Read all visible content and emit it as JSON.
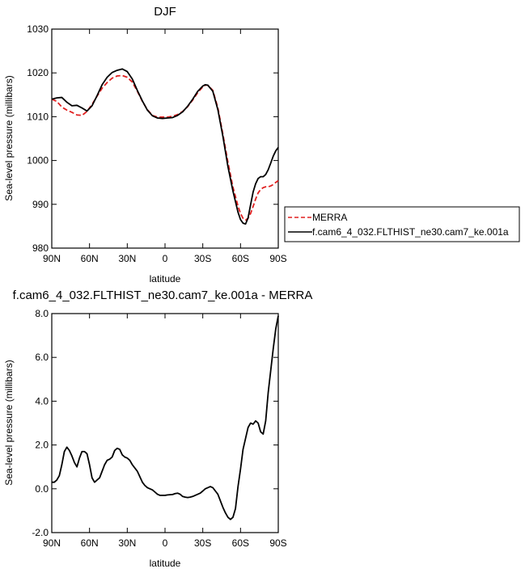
{
  "chart_data": [
    {
      "type": "line",
      "title": "DJF",
      "xlabel": "latitude",
      "ylabel": "Sea-level pressure (millibars)",
      "xlim": [
        90,
        -90
      ],
      "ylim": [
        980,
        1030
      ],
      "xticks": [
        {
          "value": 90,
          "label": "90N"
        },
        {
          "value": 60,
          "label": "60N"
        },
        {
          "value": 30,
          "label": "30N"
        },
        {
          "value": 0,
          "label": "0"
        },
        {
          "value": -30,
          "label": "30S"
        },
        {
          "value": -60,
          "label": "60S"
        },
        {
          "value": -90,
          "label": "90S"
        }
      ],
      "yticks": [
        {
          "value": 1030,
          "label": "1030"
        },
        {
          "value": 1020,
          "label": "1020"
        },
        {
          "value": 1010,
          "label": "1010"
        },
        {
          "value": 1000,
          "label": "1000"
        },
        {
          "value": 990,
          "label": "990"
        },
        {
          "value": 980,
          "label": "980"
        }
      ],
      "legend_position": "outside-right",
      "series": [
        {
          "name": "MERRA",
          "color": "#e02020",
          "dash": "dashed",
          "x": [
            90,
            86,
            82,
            78,
            74,
            70,
            66,
            62,
            58,
            54,
            50,
            46,
            42,
            38,
            34,
            30,
            26,
            22,
            18,
            14,
            10,
            6,
            2,
            -2,
            -6,
            -10,
            -14,
            -18,
            -22,
            -26,
            -30,
            -32,
            -34,
            -38,
            -42,
            -46,
            -50,
            -54,
            -58,
            -60,
            -62,
            -64,
            -66,
            -68,
            -70,
            -72,
            -74,
            -76,
            -78,
            -80,
            -82,
            -84,
            -86,
            -88,
            -90
          ],
          "y": [
            1014.0,
            1013.5,
            1012.2,
            1011.5,
            1011.0,
            1010.4,
            1010.3,
            1011.2,
            1012.8,
            1014.7,
            1016.5,
            1017.8,
            1018.8,
            1019.3,
            1019.4,
            1019.0,
            1017.9,
            1015.8,
            1013.5,
            1011.6,
            1010.3,
            1009.9,
            1009.9,
            1009.9,
            1010.1,
            1010.5,
            1011.2,
            1012.3,
            1013.8,
            1015.5,
            1016.8,
            1017.2,
            1017.2,
            1016.0,
            1012.0,
            1006.0,
            999.6,
            993.9,
            989.6,
            987.9,
            986.8,
            986.4,
            986.8,
            987.9,
            989.5,
            991.2,
            992.6,
            993.4,
            993.8,
            994.0,
            994.0,
            994.2,
            994.5,
            995.0,
            995.4
          ]
        },
        {
          "name": "f.cam6_4_032.FLTHIST_ne30.cam7_ke.001a",
          "color": "#000000",
          "dash": "solid",
          "x": [
            90,
            86,
            82,
            78,
            74,
            70,
            66,
            62,
            58,
            54,
            50,
            46,
            42,
            38,
            34,
            30,
            26,
            22,
            18,
            14,
            10,
            6,
            2,
            -2,
            -6,
            -10,
            -14,
            -18,
            -22,
            -26,
            -30,
            -32,
            -34,
            -38,
            -42,
            -46,
            -50,
            -54,
            -58,
            -60,
            -62,
            -64,
            -66,
            -68,
            -70,
            -72,
            -74,
            -76,
            -78,
            -80,
            -82,
            -84,
            -86,
            -88,
            -90
          ],
          "y": [
            1014.0,
            1014.3,
            1014.4,
            1013.3,
            1012.5,
            1012.6,
            1012.0,
            1011.3,
            1012.5,
            1014.8,
            1017.3,
            1019.0,
            1020.1,
            1020.6,
            1020.9,
            1020.3,
            1018.6,
            1016.0,
            1013.6,
            1011.5,
            1010.2,
            1009.7,
            1009.6,
            1009.7,
            1009.8,
            1010.3,
            1011.1,
            1012.4,
            1014.0,
            1015.8,
            1017.0,
            1017.3,
            1017.2,
            1015.8,
            1011.6,
            1005.5,
            998.6,
            993.0,
            988.2,
            986.5,
            985.7,
            985.5,
            986.9,
            989.9,
            992.8,
            994.7,
            995.9,
            996.3,
            996.3,
            996.8,
            997.9,
            999.4,
            1001.0,
            1002.2,
            1003.0
          ]
        }
      ]
    },
    {
      "type": "line",
      "title": "f.cam6_4_032.FLTHIST_ne30.cam7_ke.001a - MERRA",
      "xlabel": "latitude",
      "ylabel": "Sea-level pressure (millibars)",
      "xlim": [
        90,
        -90
      ],
      "ylim": [
        -2.0,
        8.0
      ],
      "xticks": [
        {
          "value": 90,
          "label": "90N"
        },
        {
          "value": 60,
          "label": "60N"
        },
        {
          "value": 30,
          "label": "30N"
        },
        {
          "value": 0,
          "label": "0"
        },
        {
          "value": -30,
          "label": "30S"
        },
        {
          "value": -60,
          "label": "60S"
        },
        {
          "value": -90,
          "label": "90S"
        }
      ],
      "yticks": [
        {
          "value": 8.0,
          "label": "8.0"
        },
        {
          "value": 6.0,
          "label": "6.0"
        },
        {
          "value": 4.0,
          "label": "4.0"
        },
        {
          "value": 2.0,
          "label": "2.0"
        },
        {
          "value": 0.0,
          "label": "0.0"
        },
        {
          "value": -2.0,
          "label": "-2.0"
        }
      ],
      "series": [
        {
          "color": "#000000",
          "dash": "solid",
          "x": [
            90,
            88,
            86,
            84,
            82,
            80,
            78,
            76,
            74,
            72,
            70,
            68,
            66,
            64,
            62,
            60,
            58,
            56,
            54,
            52,
            50,
            48,
            46,
            44,
            42,
            40,
            38,
            36,
            34,
            32,
            30,
            28,
            26,
            24,
            22,
            20,
            18,
            16,
            14,
            12,
            10,
            8,
            6,
            4,
            2,
            0,
            -2,
            -4,
            -6,
            -8,
            -10,
            -12,
            -14,
            -16,
            -18,
            -20,
            -22,
            -24,
            -26,
            -28,
            -30,
            -32,
            -34,
            -36,
            -38,
            -40,
            -42,
            -44,
            -46,
            -48,
            -50,
            -52,
            -54,
            -56,
            -58,
            -60,
            -62,
            -64,
            -66,
            -68,
            -70,
            -72,
            -74,
            -76,
            -78,
            -80,
            -82,
            -84,
            -86,
            -88,
            -90
          ],
          "y": [
            0.3,
            0.3,
            0.4,
            0.6,
            1.1,
            1.7,
            1.9,
            1.75,
            1.5,
            1.2,
            1.0,
            1.4,
            1.7,
            1.7,
            1.6,
            1.1,
            0.5,
            0.3,
            0.4,
            0.5,
            0.8,
            1.1,
            1.3,
            1.35,
            1.45,
            1.75,
            1.85,
            1.8,
            1.55,
            1.45,
            1.4,
            1.3,
            1.1,
            0.95,
            0.8,
            0.55,
            0.3,
            0.15,
            0.05,
            0.0,
            -0.05,
            -0.15,
            -0.25,
            -0.3,
            -0.3,
            -0.3,
            -0.28,
            -0.27,
            -0.26,
            -0.22,
            -0.2,
            -0.25,
            -0.35,
            -0.38,
            -0.4,
            -0.38,
            -0.35,
            -0.3,
            -0.25,
            -0.2,
            -0.1,
            0.0,
            0.05,
            0.1,
            0.05,
            -0.1,
            -0.25,
            -0.55,
            -0.85,
            -1.1,
            -1.3,
            -1.4,
            -1.3,
            -0.9,
            0.1,
            0.9,
            1.8,
            2.3,
            2.8,
            3.0,
            2.95,
            3.1,
            3.0,
            2.6,
            2.5,
            3.1,
            4.4,
            5.4,
            6.4,
            7.3,
            7.9
          ]
        }
      ]
    }
  ]
}
